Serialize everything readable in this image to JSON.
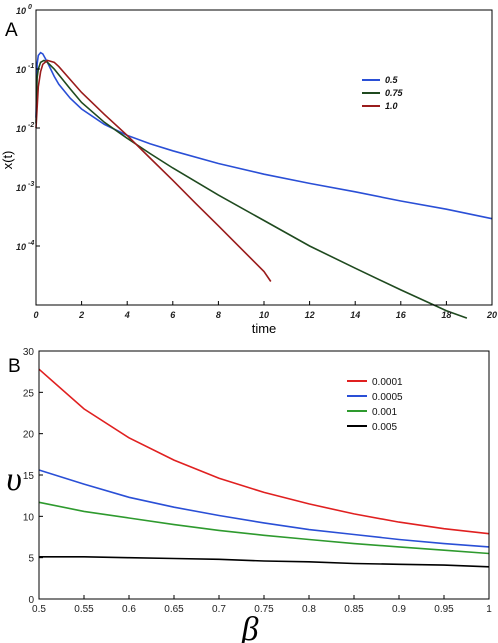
{
  "chart_data": [
    {
      "panel": "A",
      "type": "line",
      "xlabel": "time",
      "ylabel": "x(t)",
      "xlim": [
        0,
        20
      ],
      "ylim": [
        1e-05,
        1
      ],
      "yscale": "log",
      "xticks": [
        0,
        2,
        4,
        6,
        8,
        10,
        12,
        14,
        16,
        18,
        20
      ],
      "yticks": [
        {
          "value": 1,
          "base": "10",
          "exp": "0"
        },
        {
          "value": 0.1,
          "base": "10",
          "exp": "-1"
        },
        {
          "value": 0.01,
          "base": "10",
          "exp": "-2"
        },
        {
          "value": 0.001,
          "base": "10",
          "exp": "-3"
        },
        {
          "value": 0.0001,
          "base": "10",
          "exp": "-4"
        }
      ],
      "grid": false,
      "legend_position": "top-right",
      "series": [
        {
          "name": "0.5",
          "color": "#2a4fd6",
          "x": [
            0,
            0.05,
            0.1,
            0.2,
            0.3,
            0.5,
            0.8,
            1,
            1.5,
            2,
            3,
            4,
            5,
            6,
            8,
            10,
            12,
            14,
            16,
            18,
            20
          ],
          "y": [
            0.015,
            0.12,
            0.17,
            0.19,
            0.18,
            0.13,
            0.075,
            0.055,
            0.032,
            0.021,
            0.0115,
            0.0075,
            0.0054,
            0.0041,
            0.0025,
            0.00165,
            0.00115,
            0.00083,
            0.00058,
            0.00042,
            0.00029
          ]
        },
        {
          "name": "0.75",
          "color": "#1f4a1f",
          "x": [
            0,
            0.05,
            0.1,
            0.2,
            0.35,
            0.5,
            0.8,
            1,
            1.5,
            2,
            3,
            4,
            5,
            6,
            8,
            10,
            12,
            14,
            16,
            18,
            18.9
          ],
          "y": [
            0.012,
            0.07,
            0.1,
            0.13,
            0.14,
            0.13,
            0.1,
            0.08,
            0.046,
            0.027,
            0.0125,
            0.0067,
            0.0037,
            0.0021,
            0.00073,
            0.00027,
            0.0001,
            4.2e-05,
            1.8e-05,
            8e-06,
            6e-06
          ]
        },
        {
          "name": "1.0",
          "color": "#9a1c1c",
          "x": [
            0,
            0.1,
            0.2,
            0.3,
            0.5,
            0.8,
            1,
            2,
            3,
            4,
            5,
            6,
            7,
            8,
            9,
            10,
            10.3
          ],
          "y": [
            0.01,
            0.05,
            0.09,
            0.12,
            0.14,
            0.13,
            0.11,
            0.04,
            0.017,
            0.0075,
            0.0031,
            0.0013,
            0.00053,
            0.00022,
            9e-05,
            3.7e-05,
            2.5e-05
          ]
        }
      ]
    },
    {
      "panel": "B",
      "type": "line",
      "xlabel": "β",
      "ylabel": "υ",
      "xlim": [
        0.5,
        1
      ],
      "ylim": [
        0,
        30
      ],
      "xticks": [
        "0.5",
        "0.55",
        "0.6",
        "0.65",
        "0.7",
        "0.75",
        "0.8",
        "0.85",
        "0.9",
        "0.95",
        "1"
      ],
      "yticks": [
        "0",
        "5",
        "10",
        "15",
        "20",
        "25",
        "30"
      ],
      "grid": false,
      "legend_position": "top-right",
      "series": [
        {
          "name": "0.0001",
          "color": "#e02020",
          "x": [
            0.5,
            0.55,
            0.6,
            0.65,
            0.7,
            0.75,
            0.8,
            0.85,
            0.9,
            0.95,
            1
          ],
          "y": [
            27.8,
            23.0,
            19.5,
            16.8,
            14.6,
            12.9,
            11.5,
            10.3,
            9.3,
            8.5,
            7.9
          ]
        },
        {
          "name": "0.0005",
          "color": "#2a4fd6",
          "x": [
            0.5,
            0.55,
            0.6,
            0.65,
            0.7,
            0.75,
            0.8,
            0.85,
            0.9,
            0.95,
            1
          ],
          "y": [
            15.6,
            13.9,
            12.3,
            11.1,
            10.1,
            9.2,
            8.4,
            7.8,
            7.2,
            6.7,
            6.3
          ]
        },
        {
          "name": "0.001",
          "color": "#2e9a2e",
          "x": [
            0.5,
            0.55,
            0.6,
            0.65,
            0.7,
            0.75,
            0.8,
            0.85,
            0.9,
            0.95,
            1
          ],
          "y": [
            11.7,
            10.6,
            9.8,
            9.0,
            8.3,
            7.7,
            7.2,
            6.7,
            6.3,
            5.9,
            5.5
          ]
        },
        {
          "name": "0.005",
          "color": "#000000",
          "x": [
            0.5,
            0.55,
            0.6,
            0.65,
            0.7,
            0.75,
            0.8,
            0.85,
            0.9,
            0.95,
            1
          ],
          "y": [
            5.1,
            5.1,
            5.0,
            4.9,
            4.8,
            4.6,
            4.5,
            4.3,
            4.2,
            4.1,
            3.9
          ]
        }
      ]
    }
  ]
}
